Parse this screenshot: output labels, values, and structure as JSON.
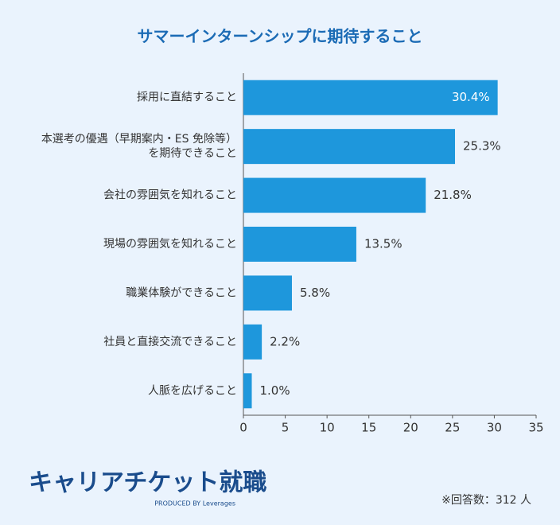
{
  "chart_data": {
    "type": "bar",
    "orientation": "horizontal",
    "title": "サマーインターンシップに期待すること",
    "categories": [
      "採用に直結すること",
      "本選考の優遇（早期案内・ES 免除等）\nを期待できること",
      "会社の雰囲気を知れること",
      "現場の雰囲気を知れること",
      "職業体験ができること",
      "社員と直接交流できること",
      "人脈を広げること"
    ],
    "values": [
      30.4,
      25.3,
      21.8,
      13.5,
      5.8,
      2.2,
      1.0
    ],
    "value_labels": [
      "30.4%",
      "25.3%",
      "21.8%",
      "13.5%",
      "5.8%",
      "2.2%",
      "1.0%"
    ],
    "color": "#1e97dc",
    "xlim": [
      0,
      35
    ],
    "xticks": [
      0,
      5,
      10,
      15,
      20,
      25,
      30,
      35
    ],
    "grid": false,
    "logo": "キャリアチケット就職",
    "logo_sub": "PRODUCED BY Leverages",
    "note": "※回答数：312 人"
  }
}
